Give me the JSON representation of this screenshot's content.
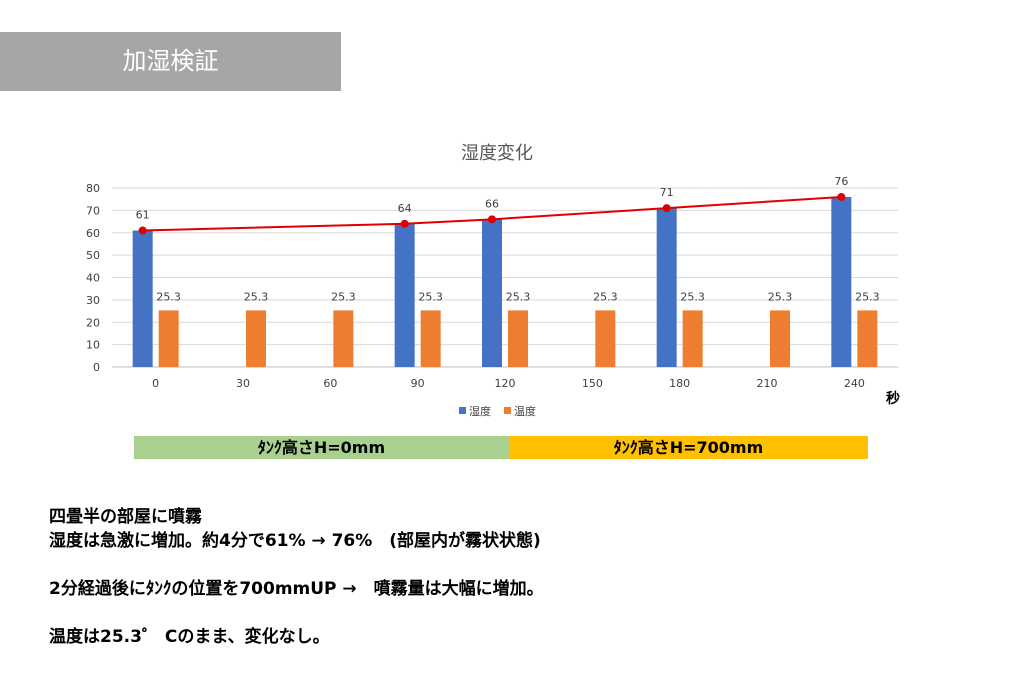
{
  "slide": {
    "title": "加湿検証"
  },
  "chart_data": {
    "type": "bar",
    "title": "湿度変化",
    "x_unit_label": "秒",
    "categories": [
      "0",
      "30",
      "60",
      "90",
      "120",
      "150",
      "180",
      "210",
      "240"
    ],
    "ylim": [
      0,
      80
    ],
    "yticks": [
      0,
      10,
      20,
      30,
      40,
      50,
      60,
      70,
      80
    ],
    "grid": true,
    "legend_position": "bottom",
    "series": [
      {
        "name": "湿度",
        "kind": "bar",
        "color": "#4472c4",
        "values": [
          61,
          null,
          null,
          64,
          66,
          null,
          71,
          null,
          76
        ]
      },
      {
        "name": "温度",
        "kind": "bar",
        "color": "#ed7d31",
        "values": [
          25.3,
          25.3,
          25.3,
          25.3,
          25.3,
          25.3,
          25.3,
          25.3,
          25.3
        ]
      },
      {
        "name": "",
        "kind": "line",
        "color": "#e00000",
        "values": [
          61,
          null,
          null,
          64,
          66,
          null,
          71,
          null,
          76
        ]
      }
    ],
    "data_labels": {
      "humidity": [
        "61",
        "",
        "",
        "64",
        "66",
        "",
        "71",
        "",
        "76"
      ],
      "temperature": [
        "25.3",
        "25.3",
        "25.3",
        "25.3",
        "25.3",
        "25.3",
        "25.3",
        "25.3",
        "25.3"
      ]
    }
  },
  "bands": {
    "left_label": "ﾀﾝｸ高さH=0mm",
    "left_color": "#a9d08e",
    "right_label": "ﾀﾝｸ高さH=700mm",
    "right_color": "#ffc000"
  },
  "notes": {
    "line1": "四畳半の部屋に噴霧",
    "line2": "湿度は急激に増加。約4分で61% → 76%　(部屋内が霧状状態)",
    "line3": "2分経過後にﾀﾝｸの位置を700mmUP →　噴霧量は大幅に増加。",
    "line4": "温度は25.3゜ Cのまま、変化なし。"
  }
}
